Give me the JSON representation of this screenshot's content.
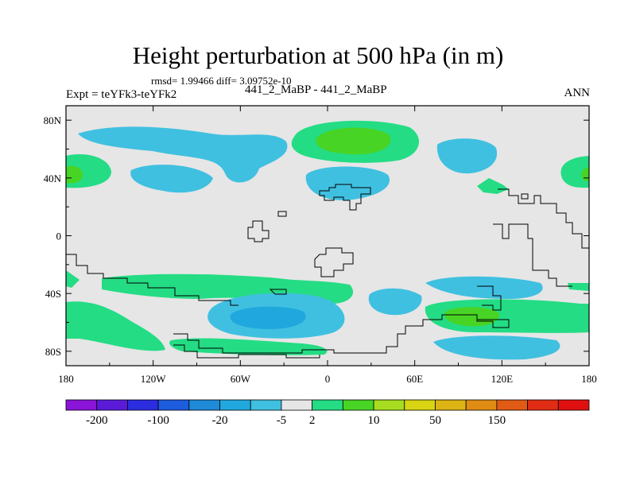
{
  "chart_data": {
    "type": "heatmap",
    "title": "Height perturbation at 500 hPa (in m)",
    "stats": "rmsd= 1.99466 diff= 3.09752e-10",
    "left_label": "Expt = teYFk3-teYFk2",
    "center_label": "441_2_MaBP - 441_2_MaBP",
    "right_label": "ANN",
    "x_ticks": [
      "180",
      "120W",
      "60W",
      "0",
      "60E",
      "120E",
      "180"
    ],
    "x_tick_values": [
      -180,
      -120,
      -60,
      0,
      60,
      120,
      180
    ],
    "y_ticks": [
      "80N",
      "40N",
      "0",
      "40S",
      "80S"
    ],
    "y_tick_values": [
      80,
      40,
      0,
      -40,
      -80
    ],
    "xlim": [
      -180,
      180
    ],
    "ylim": [
      -90,
      90
    ],
    "colorbar": {
      "labels": [
        "-200",
        "-100",
        "-20",
        "-5",
        "2",
        "10",
        "50",
        "150"
      ],
      "colors": [
        "#8a14d8",
        "#5a1ad8",
        "#2c2ce0",
        "#1e5cde",
        "#1e8ad8",
        "#20a8de",
        "#40c0e0",
        "#e6e6e6",
        "#24dc84",
        "#48d424",
        "#a8dc20",
        "#d8d414",
        "#dcb414",
        "#e08c14",
        "#e05c14",
        "#e02c14",
        "#e01010"
      ]
    },
    "features": [
      {
        "name": "north-pacific-low",
        "lon": -140,
        "lat": 65,
        "value": -5
      },
      {
        "name": "north-america-low",
        "lon": -90,
        "lat": 45,
        "value": -5
      },
      {
        "name": "north-atlantic-low",
        "lon": -65,
        "lat": 55,
        "value": -5
      },
      {
        "name": "west-europe-high",
        "lon": 10,
        "lat": 65,
        "value": 8
      },
      {
        "name": "mediterranean-low",
        "lon": 5,
        "lat": 35,
        "value": -5
      },
      {
        "name": "siberia-low",
        "lon": 55,
        "lat": 62,
        "value": -5
      },
      {
        "name": "east-asia-high",
        "lon": 130,
        "lat": 35,
        "value": 3
      },
      {
        "name": "north-pacific-high",
        "lon": 175,
        "lat": 43,
        "value": 8
      },
      {
        "name": "south-pacific-high",
        "lon": -130,
        "lat": -65,
        "value": 3
      },
      {
        "name": "south-atlantic-low",
        "lon": -60,
        "lat": -60,
        "value": -12
      },
      {
        "name": "southern-ocean-band",
        "lon": -100,
        "lat": -32,
        "value": 3
      },
      {
        "name": "south-atlantic-high",
        "lon": -40,
        "lat": -80,
        "value": 3
      },
      {
        "name": "indian-ocean-low",
        "lon": 70,
        "lat": -38,
        "value": -5
      },
      {
        "name": "indian-ocean-high",
        "lon": 100,
        "lat": -55,
        "value": 8
      },
      {
        "name": "australia-low",
        "lon": 120,
        "lat": -80,
        "value": -5
      },
      {
        "name": "south-pacific-east-high",
        "lon": 150,
        "lat": -45,
        "value": 3
      }
    ]
  }
}
